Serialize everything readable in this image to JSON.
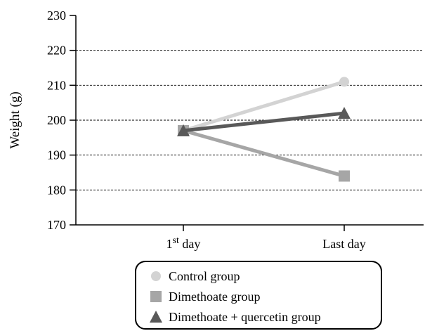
{
  "chart_data": {
    "type": "line",
    "ylabel": "Weight (g)",
    "xlabel": "",
    "categories": [
      {
        "base": "1",
        "sup": "st",
        "rest": " day"
      },
      {
        "base": "Last day",
        "sup": "",
        "rest": ""
      }
    ],
    "ylim": [
      170,
      230
    ],
    "yticks": [
      170,
      180,
      190,
      200,
      210,
      220,
      230
    ],
    "ytick_labels": [
      "170",
      "180",
      "190",
      "200",
      "210",
      "220",
      "230"
    ],
    "grid": "horizontal dashed",
    "legend_position": "bottom",
    "series": [
      {
        "name": "Control group",
        "values": [
          197,
          211
        ],
        "color": "#d3d3d3",
        "marker": "circle"
      },
      {
        "name": "Dimethoate group",
        "values": [
          197,
          184
        ],
        "color": "#a6a6a6",
        "marker": "square"
      },
      {
        "name": "Dimethoate + quercetin group",
        "values": [
          197,
          202
        ],
        "color": "#595959",
        "marker": "triangle"
      }
    ]
  }
}
